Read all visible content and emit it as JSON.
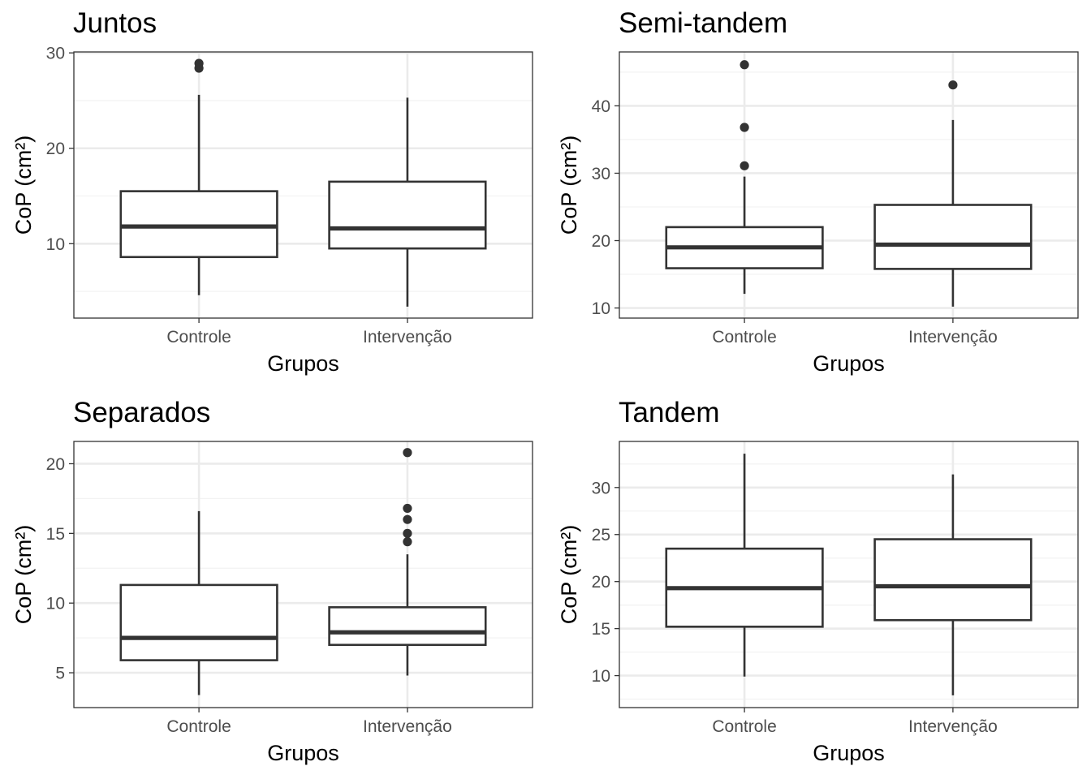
{
  "chart_data": [
    {
      "type": "box",
      "title": "Juntos",
      "xlabel": "Grupos",
      "ylabel": "CoP (cm²)",
      "categories": [
        "Controle",
        "Intervenção"
      ],
      "ylim": [
        2.2,
        30.1
      ],
      "yticks": [
        10,
        20,
        30
      ],
      "grid": true,
      "boxes": [
        {
          "group": "Controle",
          "whisker_low": 4.6,
          "q1": 8.6,
          "median": 11.8,
          "q3": 15.5,
          "whisker_high": 25.6,
          "outliers": [
            28.4,
            28.9
          ]
        },
        {
          "group": "Intervenção",
          "whisker_low": 3.4,
          "q1": 9.5,
          "median": 11.6,
          "q3": 16.5,
          "whisker_high": 25.3,
          "outliers": []
        }
      ]
    },
    {
      "type": "box",
      "title": "Semi-tandem",
      "xlabel": "Grupos",
      "ylabel": "CoP (cm²)",
      "categories": [
        "Controle",
        "Intervenção"
      ],
      "ylim": [
        8.5,
        48.0
      ],
      "yticks": [
        10,
        20,
        30,
        40
      ],
      "grid": true,
      "boxes": [
        {
          "group": "Controle",
          "whisker_low": 12.1,
          "q1": 15.9,
          "median": 19.0,
          "q3": 22.0,
          "whisker_high": 29.5,
          "outliers": [
            31.1,
            36.8,
            46.1
          ]
        },
        {
          "group": "Intervenção",
          "whisker_low": 10.2,
          "q1": 15.8,
          "median": 19.4,
          "q3": 25.3,
          "whisker_high": 37.9,
          "outliers": [
            43.1
          ]
        }
      ]
    },
    {
      "type": "box",
      "title": "Separados",
      "xlabel": "Grupos",
      "ylabel": "CoP (cm²)",
      "categories": [
        "Controle",
        "Intervenção"
      ],
      "ylim": [
        2.5,
        21.6
      ],
      "yticks": [
        5,
        10,
        15,
        20
      ],
      "grid": true,
      "boxes": [
        {
          "group": "Controle",
          "whisker_low": 3.4,
          "q1": 5.9,
          "median": 7.5,
          "q3": 11.3,
          "whisker_high": 16.6,
          "outliers": []
        },
        {
          "group": "Intervenção",
          "whisker_low": 4.8,
          "q1": 7.0,
          "median": 7.9,
          "q3": 9.7,
          "whisker_high": 13.5,
          "outliers": [
            14.4,
            15.0,
            16.0,
            16.8,
            20.8
          ]
        }
      ]
    },
    {
      "type": "box",
      "title": "Tandem",
      "xlabel": "Grupos",
      "ylabel": "CoP (cm²)",
      "categories": [
        "Controle",
        "Intervenção"
      ],
      "ylim": [
        6.6,
        34.9
      ],
      "yticks": [
        10,
        15,
        20,
        25,
        30
      ],
      "grid": true,
      "boxes": [
        {
          "group": "Controle",
          "whisker_low": 9.9,
          "q1": 15.2,
          "median": 19.3,
          "q3": 23.5,
          "whisker_high": 33.6,
          "outliers": []
        },
        {
          "group": "Intervenção",
          "whisker_low": 7.9,
          "q1": 15.9,
          "median": 19.5,
          "q3": 24.5,
          "whisker_high": 31.4,
          "outliers": []
        }
      ]
    }
  ]
}
